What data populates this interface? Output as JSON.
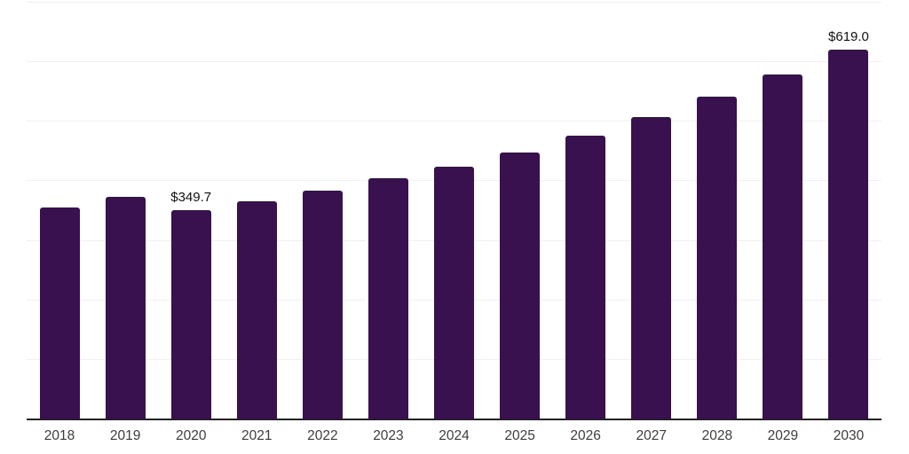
{
  "chart_data": {
    "type": "bar",
    "title": "",
    "xlabel": "",
    "ylabel": "",
    "categories": [
      "2018",
      "2019",
      "2020",
      "2021",
      "2022",
      "2023",
      "2024",
      "2025",
      "2026",
      "2027",
      "2028",
      "2029",
      "2030"
    ],
    "values": [
      355.0,
      372.5,
      349.7,
      364.5,
      383.0,
      403.5,
      423.0,
      447.0,
      475.0,
      506.0,
      540.5,
      577.5,
      619.0
    ],
    "data_labels": [
      {
        "index": 2,
        "text": "$349.7"
      },
      {
        "index": 12,
        "text": "$619.0"
      }
    ],
    "ylim": [
      0,
      700
    ],
    "grid": true,
    "gridline_step": 100,
    "legend": "none",
    "colors": {
      "bar": "#38114e",
      "axis": "#222222",
      "gridline": "#f0f0f0",
      "tick_label": "#3d3d3d",
      "data_label": "#111111",
      "background": "#ffffff"
    }
  }
}
